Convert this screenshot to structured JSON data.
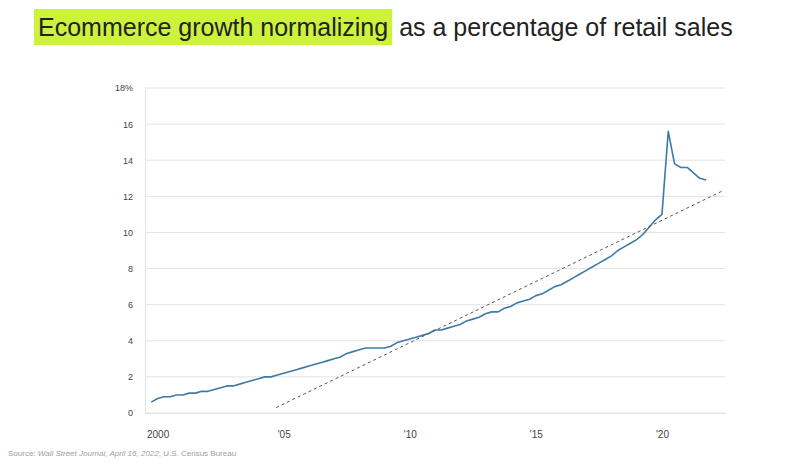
{
  "chart_data": {
    "type": "line",
    "title": [
      "Ecommerce growth normalizing",
      "as a percentage of retail sales"
    ],
    "source": [
      "Source: ",
      "Wall Street Journal, April 16, 2022",
      "; U.S. Census Bureau"
    ],
    "xlim": [
      1999.5,
      2022.5
    ],
    "xticks": [
      2000,
      {
        "value": 2005,
        "label": "'05"
      },
      {
        "value": 2010,
        "label": "'10"
      },
      {
        "value": 2015,
        "label": "'15"
      },
      {
        "value": 2020,
        "label": "'20"
      }
    ],
    "ylim": [
      0,
      18
    ],
    "yticks": [
      0,
      2,
      4,
      6,
      8,
      10,
      12,
      14,
      16,
      {
        "value": 18,
        "label": "18%"
      }
    ],
    "grid": true,
    "series": [
      {
        "color": "#3d7ba5",
        "line_style": "solid",
        "x": [
          1999.75,
          2000,
          2000.25,
          2000.5,
          2000.75,
          2001,
          2001.25,
          2001.5,
          2001.75,
          2002,
          2002.25,
          2002.5,
          2002.75,
          2003,
          2003.25,
          2003.5,
          2003.75,
          2004,
          2004.25,
          2004.5,
          2004.75,
          2005,
          2005.25,
          2005.5,
          2005.75,
          2006,
          2006.25,
          2006.5,
          2006.75,
          2007,
          2007.25,
          2007.5,
          2007.75,
          2008,
          2008.25,
          2008.5,
          2008.75,
          2009,
          2009.25,
          2009.5,
          2009.75,
          2010,
          2010.25,
          2010.5,
          2010.75,
          2011,
          2011.25,
          2011.5,
          2011.75,
          2012,
          2012.25,
          2012.5,
          2012.75,
          2013,
          2013.25,
          2013.5,
          2013.75,
          2014,
          2014.25,
          2014.5,
          2014.75,
          2015,
          2015.25,
          2015.5,
          2015.75,
          2016,
          2016.25,
          2016.5,
          2016.75,
          2017,
          2017.25,
          2017.5,
          2017.75,
          2018,
          2018.25,
          2018.5,
          2018.75,
          2019,
          2019.25,
          2019.5,
          2019.75,
          2020,
          2020.25,
          2020.5,
          2020.75,
          2021,
          2021.25,
          2021.5,
          2021.75
        ],
        "values": [
          0.6,
          0.8,
          0.9,
          0.9,
          1.0,
          1.0,
          1.1,
          1.1,
          1.2,
          1.2,
          1.3,
          1.4,
          1.5,
          1.5,
          1.6,
          1.7,
          1.8,
          1.9,
          2.0,
          2.0,
          2.1,
          2.2,
          2.3,
          2.4,
          2.5,
          2.6,
          2.7,
          2.8,
          2.9,
          3.0,
          3.1,
          3.3,
          3.4,
          3.5,
          3.6,
          3.6,
          3.6,
          3.6,
          3.7,
          3.9,
          4.0,
          4.1,
          4.2,
          4.3,
          4.4,
          4.6,
          4.6,
          4.7,
          4.8,
          4.9,
          5.1,
          5.2,
          5.3,
          5.5,
          5.6,
          5.6,
          5.8,
          5.9,
          6.1,
          6.2,
          6.3,
          6.5,
          6.6,
          6.8,
          7.0,
          7.1,
          7.3,
          7.5,
          7.7,
          7.9,
          8.1,
          8.3,
          8.5,
          8.7,
          9.0,
          9.2,
          9.4,
          9.6,
          9.9,
          10.3,
          10.7,
          11.0,
          15.6,
          13.8,
          13.6,
          13.6,
          13.3,
          13.0,
          12.9
        ]
      },
      {
        "color": "#555555",
        "line_style": "dashed",
        "x": [
          2004.7,
          2022.4
        ],
        "values": [
          0.3,
          12.3
        ]
      }
    ]
  }
}
